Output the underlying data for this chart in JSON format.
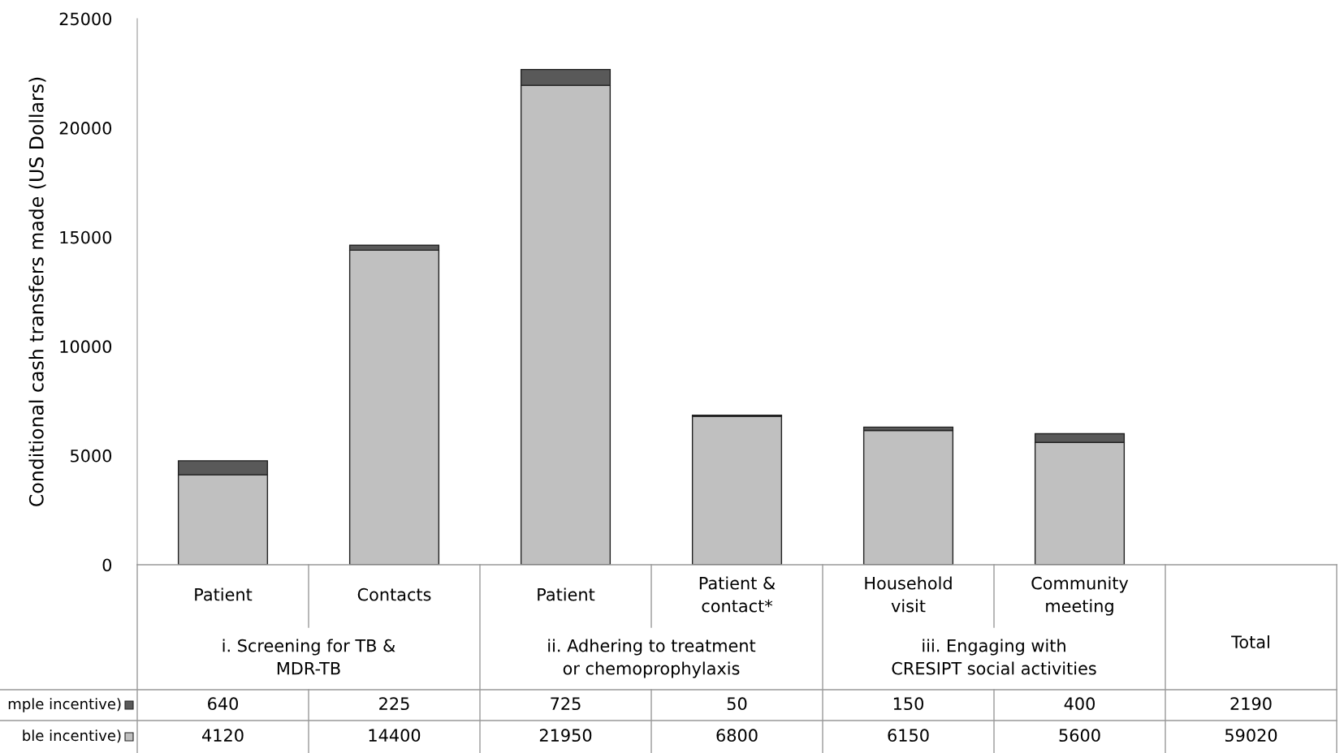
{
  "chart_data": {
    "type": "bar",
    "stacked": true,
    "ylabel": "Conditional cash transfers made (US Dollars)",
    "categories": [
      "Patient",
      "Contacts",
      "Patient",
      "Patient &\ncontact*",
      "Household\nvisit",
      "Community\nmeeting"
    ],
    "series": [
      {
        "name": "ble incentive)",
        "color": "#c0c0c0",
        "values": [
          4120,
          14400,
          21950,
          6800,
          6150,
          5600
        ]
      },
      {
        "name": "mple incentive)",
        "color": "#595959",
        "values": [
          640,
          225,
          725,
          50,
          150,
          400
        ]
      }
    ],
    "ylim": [
      0,
      25000
    ],
    "yticks": [
      0,
      5000,
      10000,
      15000,
      20000,
      25000
    ],
    "grid": false,
    "legend": "left",
    "data_labels": true,
    "annotations": [
      "i. Screening for TB &\nMDR-TB",
      "ii. Adhering to treatment\nor chemoprophylaxis",
      "iii. Engaging with\nCRESIPT social activities",
      "Total",
      "2190",
      "59020"
    ]
  }
}
